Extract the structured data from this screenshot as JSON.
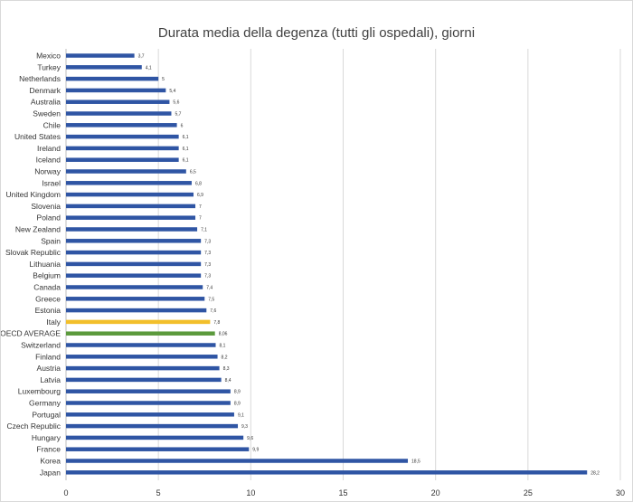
{
  "chart_data": {
    "type": "bar",
    "orientation": "horizontal",
    "title": "Durata media della degenza  (tutti gli ospedali), giorni",
    "xlabel": "",
    "ylabel": "",
    "xlim": [
      0,
      30
    ],
    "xticks": [
      0,
      5,
      10,
      15,
      20,
      25,
      30
    ],
    "grid": "vertical",
    "legend": "none",
    "colors": {
      "default": "#2f55a4",
      "Italy": "#f2bf2b",
      "OECD AVERAGE": "#5b9a3c",
      "grid": "#d9d9d9",
      "axis": "#bfbfbf"
    },
    "categories": [
      "Mexico",
      "Turkey",
      "Netherlands",
      "Denmark",
      "Australia",
      "Sweden",
      "Chile",
      "United States",
      "Ireland",
      "Iceland",
      "Norway",
      "Israel",
      "United Kingdom",
      "Slovenia",
      "Poland",
      "New Zealand",
      "Spain",
      "Slovak Republic",
      "Lithuania",
      "Belgium",
      "Canada",
      "Greece",
      "Estonia",
      "Italy",
      "OECD AVERAGE",
      "Switzerland",
      "Finland",
      "Austria",
      "Latvia",
      "Luxembourg",
      "Germany",
      "Portugal",
      "Czech Republic",
      "Hungary",
      "France",
      "Korea",
      "Japan"
    ],
    "values": [
      3.7,
      4.1,
      5,
      5.4,
      5.6,
      5.7,
      6,
      6.1,
      6.1,
      6.1,
      6.5,
      6.8,
      6.9,
      7,
      7,
      7.1,
      7.3,
      7.3,
      7.3,
      7.3,
      7.4,
      7.5,
      7.6,
      7.8,
      8.06,
      8.1,
      8.2,
      8.3,
      8.4,
      8.9,
      8.9,
      9.1,
      9.3,
      9.6,
      9.9,
      18.5,
      28.2
    ],
    "value_labels": [
      "3,7",
      "4,1",
      "5",
      "5,4",
      "5,6",
      "5,7",
      "6",
      "6,1",
      "6,1",
      "6,1",
      "6,5",
      "6,8",
      "6,9",
      "7",
      "7",
      "7,1",
      "7,3",
      "7,3",
      "7,3",
      "7,3",
      "7,4",
      "7,5",
      "7,6",
      "7,8",
      "8,06",
      "8,1",
      "8,2",
      "8,3",
      "8,4",
      "8,9",
      "8,9",
      "9,1",
      "9,3",
      "9,6",
      "9,9",
      "18,5",
      "28,2"
    ]
  }
}
